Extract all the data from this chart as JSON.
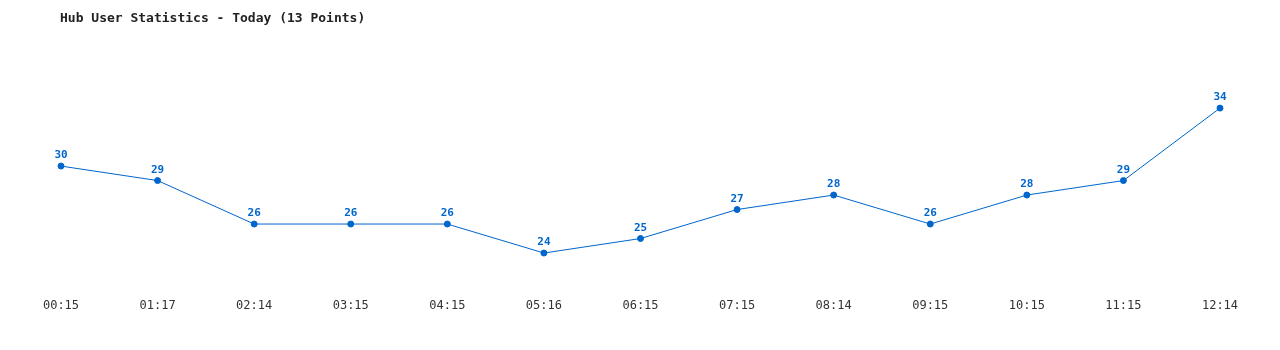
{
  "chart_data": {
    "type": "line",
    "title": "Hub User Statistics - Today (13 Points)",
    "categories": [
      "00:15",
      "01:17",
      "02:14",
      "03:15",
      "04:15",
      "05:16",
      "06:15",
      "07:15",
      "08:14",
      "09:15",
      "10:15",
      "11:15",
      "12:14"
    ],
    "series": [
      {
        "color": "#0066cc",
        "values": [
          30,
          29,
          26,
          26,
          26,
          24,
          25,
          27,
          28,
          26,
          28,
          29,
          34
        ]
      }
    ],
    "data_labels": true,
    "marker": "circle",
    "grid": false,
    "legend": false
  }
}
